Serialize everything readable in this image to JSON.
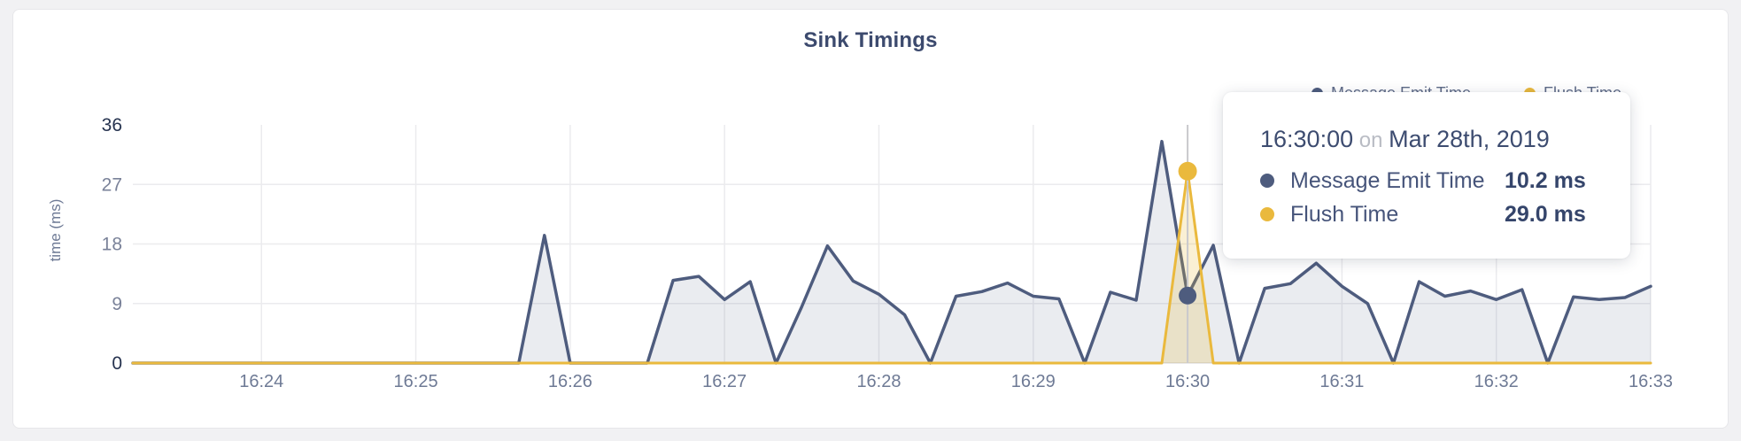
{
  "page": {
    "background": "#f1f1f3",
    "card_background": "#ffffff"
  },
  "title": "Sink Timings",
  "colors": {
    "message_emit": "#4e5c7e",
    "flush": "#eab93d",
    "title_text": "#3c4a6e",
    "tick_text": "#6e7a95",
    "grid": "#ebebee",
    "crosshair": "#c9c9cd"
  },
  "legend": {
    "items": [
      {
        "label": "Message Emit Time",
        "color": "#4e5c7e"
      },
      {
        "label": "Flush Time",
        "color": "#eab93d"
      }
    ]
  },
  "tooltip": {
    "time": "16:30:00",
    "conj": " on ",
    "date": "Mar 28th, 2019",
    "rows": [
      {
        "label": "Message Emit Time",
        "value": "10.2 ms",
        "color": "#4e5c7e"
      },
      {
        "label": "Flush Time",
        "value": "29.0 ms",
        "color": "#eab93d"
      }
    ]
  },
  "chart_data": {
    "type": "area",
    "title": "Sink Timings",
    "xlabel": "",
    "ylabel": "time (ms)",
    "ylim": [
      0,
      36
    ],
    "grid": true,
    "legend_position": "top-right",
    "y_ticks": [
      {
        "value": 36,
        "emphasis": true
      },
      {
        "value": 27,
        "emphasis": false
      },
      {
        "value": 18,
        "emphasis": false
      },
      {
        "value": 9,
        "emphasis": false
      },
      {
        "value": 0,
        "emphasis": true
      }
    ],
    "x_domain_seconds": [
      0,
      590
    ],
    "x_axis_note": "t=0 corresponds to 16:23:10; points sampled every 10 s",
    "x_ticks": [
      {
        "t": 50,
        "label": "16:24"
      },
      {
        "t": 110,
        "label": "16:25"
      },
      {
        "t": 170,
        "label": "16:26"
      },
      {
        "t": 230,
        "label": "16:27"
      },
      {
        "t": 290,
        "label": "16:28"
      },
      {
        "t": 350,
        "label": "16:29"
      },
      {
        "t": 410,
        "label": "16:30"
      },
      {
        "t": 470,
        "label": "16:31"
      },
      {
        "t": 530,
        "label": "16:32"
      },
      {
        "t": 590,
        "label": "16:33"
      }
    ],
    "series": [
      {
        "name": "Message Emit Time",
        "color": "#4e5c7e",
        "fill": "rgba(93,107,139,0.13)",
        "line_width": 3.5,
        "t0": 0,
        "dt": 10,
        "values": [
          0,
          0,
          0,
          0,
          0,
          0,
          0,
          0,
          0,
          0,
          0,
          0,
          0,
          0,
          0,
          0,
          19.3,
          0,
          0,
          0,
          0,
          12.5,
          13.1,
          9.6,
          12.3,
          0,
          8.5,
          17.7,
          12.4,
          10.4,
          7.3,
          0,
          10.1,
          10.8,
          12.1,
          10.1,
          9.7,
          0,
          10.7,
          9.5,
          33.5,
          10.2,
          17.8,
          0,
          11.3,
          12,
          15.1,
          11.6,
          9,
          0,
          12.3,
          10.1,
          10.9,
          9.6,
          11.1,
          0,
          10,
          9.6,
          9.9,
          11.6
        ]
      },
      {
        "name": "Flush Time",
        "color": "#eab93d",
        "fill": "rgba(234,185,61,0.22)",
        "line_width": 3,
        "t0": 0,
        "dt": 10,
        "values": [
          0,
          0,
          0,
          0,
          0,
          0,
          0,
          0,
          0,
          0,
          0,
          0,
          0,
          0,
          0,
          0,
          0,
          0,
          0,
          0,
          0,
          0,
          0,
          0,
          0,
          0,
          0,
          0,
          0,
          0,
          0,
          0,
          0,
          0,
          0,
          0,
          0,
          0,
          0,
          0,
          0,
          29,
          0,
          0,
          0,
          0,
          0,
          0,
          0,
          0,
          0,
          0,
          0,
          0,
          0,
          0,
          0,
          0,
          0,
          0
        ]
      }
    ],
    "highlight": {
      "t": 410,
      "time_label": "16:30:00",
      "date_label": "Mar 28th, 2019",
      "points": [
        {
          "series": "Message Emit Time",
          "value": 10.2,
          "radius": 10
        },
        {
          "series": "Flush Time",
          "value": 29.0,
          "radius": 10.5
        }
      ]
    }
  }
}
